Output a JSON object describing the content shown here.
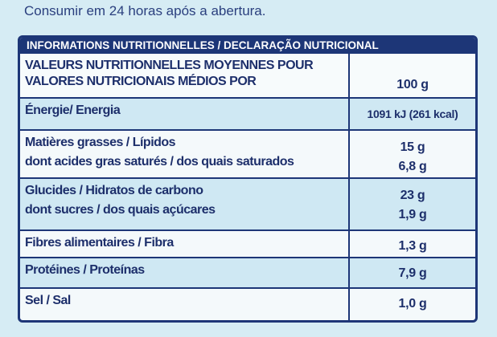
{
  "header": {
    "note": "Consumir em 24 horas após a abertura."
  },
  "table": {
    "title": "INFORMATIONS NUTRITIONNELLES / DECLARAÇÃO NUTRICIONAL",
    "head": {
      "labels": [
        "VALEURS NUTRITIONNELLES MOYENNES POUR",
        "VALORES NUTRICIONAIS MÉDIOS POR"
      ],
      "value": "100 g"
    },
    "rows": [
      {
        "labels": [
          "Énergie/ Energia"
        ],
        "values": [
          "1091 kJ (261 kcal)"
        ]
      },
      {
        "labels": [
          "Matières grasses / Lípidos",
          "dont acides gras saturés / dos quais saturados"
        ],
        "values": [
          "15 g",
          "6,8 g"
        ]
      },
      {
        "labels": [
          "Glucides / Hidratos de carbono",
          "dont sucres / dos quais açúcares"
        ],
        "values": [
          "23 g",
          "1,9 g"
        ]
      },
      {
        "labels": [
          "Fibres alimentaires / Fibra"
        ],
        "values": [
          "1,3 g"
        ]
      },
      {
        "labels": [
          "Protéines / Proteínas"
        ],
        "values": [
          "7,9 g"
        ]
      },
      {
        "labels": [
          "Sel / Sal"
        ],
        "values": [
          "1,0 g"
        ]
      }
    ]
  }
}
